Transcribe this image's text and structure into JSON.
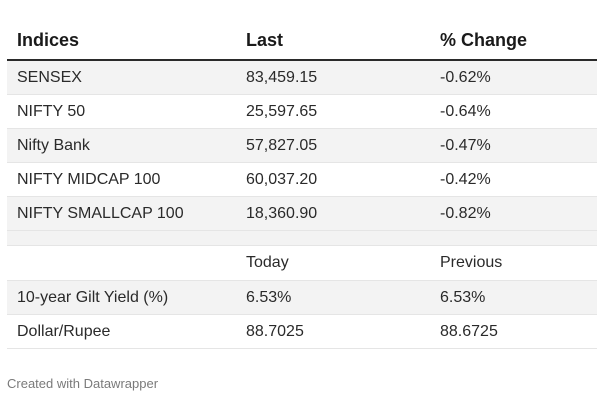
{
  "table": {
    "headers": [
      "Indices",
      "Last",
      "% Change"
    ],
    "rows": [
      [
        "SENSEX",
        "83,459.15",
        "-0.62%"
      ],
      [
        "NIFTY 50",
        "25,597.65",
        "-0.64%"
      ],
      [
        "Nifty Bank",
        "57,827.05",
        "-0.47%"
      ],
      [
        "NIFTY MIDCAP 100",
        "60,037.20",
        "-0.42%"
      ],
      [
        "NIFTY SMALLCAP 100",
        "18,360.90",
        "-0.82%"
      ]
    ],
    "subheaders": [
      "",
      "Today",
      "Previous"
    ],
    "rows2": [
      [
        "10-year Gilt Yield (%)",
        "6.53%",
        "6.53%"
      ],
      [
        "Dollar/Rupee",
        "88.7025",
        "88.6725"
      ]
    ]
  },
  "footer": {
    "credit": "Created with Datawrapper"
  }
}
